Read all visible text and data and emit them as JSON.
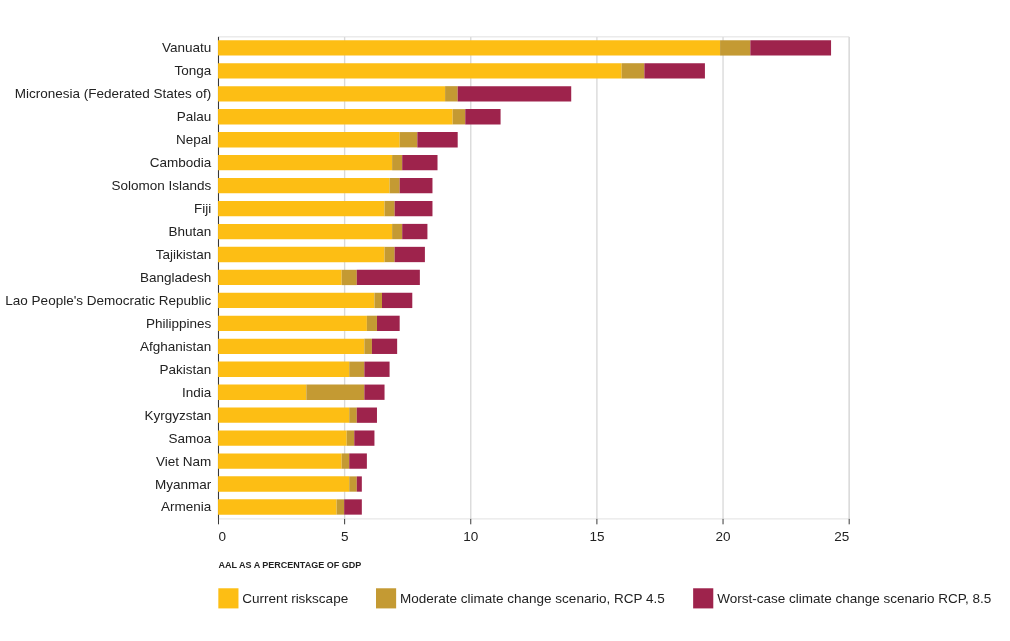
{
  "chart_data": {
    "type": "bar",
    "orientation": "horizontal",
    "stacked": true,
    "xlabel": "AAL AS A PERCENTAGE OF GDP",
    "categories": [
      "Vanuatu",
      "Tonga",
      "Micronesia (Federated States of)",
      "Palau",
      "Nepal",
      "Cambodia",
      "Solomon Islands",
      "Fiji",
      "Bhutan",
      "Tajikistan",
      "Bangladesh",
      "Lao People's Democratic Republic",
      "Philippines",
      "Afghanistan",
      "Pakistan",
      "India",
      "Kyrgyzstan",
      "Samoa",
      "Viet Nam",
      "Myanmar",
      "Armenia"
    ],
    "series": [
      {
        "name": "Current riskscape",
        "color": "#fdbe14",
        "values": [
          19.9,
          16.0,
          9.0,
          9.3,
          7.2,
          6.9,
          6.8,
          6.6,
          6.9,
          6.6,
          4.9,
          6.2,
          5.9,
          5.8,
          5.2,
          3.5,
          5.2,
          5.1,
          4.9,
          5.2,
          4.7
        ]
      },
      {
        "name": "Moderate climate change scenario, RCP 4.5",
        "color": "#c49a33",
        "values": [
          1.2,
          0.9,
          0.5,
          0.5,
          0.7,
          0.4,
          0.4,
          0.4,
          0.4,
          0.4,
          0.6,
          0.3,
          0.4,
          0.3,
          0.6,
          2.3,
          0.3,
          0.3,
          0.3,
          0.3,
          0.3
        ]
      },
      {
        "name": "Worst-case climate change scenario RCP, 8.5",
        "color": "#9e234c",
        "values": [
          3.2,
          2.4,
          4.5,
          1.4,
          1.6,
          1.4,
          1.3,
          1.5,
          1.0,
          1.2,
          2.5,
          1.2,
          0.9,
          1.0,
          1.0,
          0.8,
          0.8,
          0.8,
          0.7,
          0.2,
          0.7
        ]
      }
    ],
    "xlim": [
      0,
      25
    ],
    "xticks": [
      0,
      5,
      10,
      15,
      20,
      25
    ],
    "grid": "x",
    "legend": "bottom"
  }
}
